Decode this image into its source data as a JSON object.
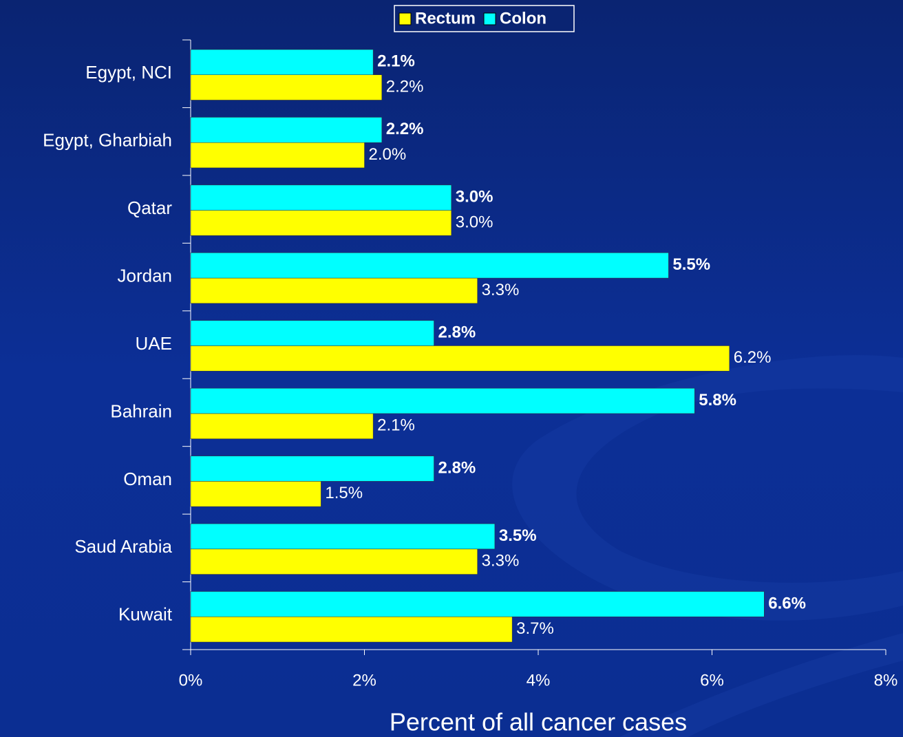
{
  "chart_data": {
    "type": "hbar",
    "categories": [
      "Egypt, NCI",
      "Egypt, Gharbiah",
      "Qatar",
      "Jordan",
      "UAE",
      "Bahrain",
      "Oman",
      "Saud Arabia",
      "Kuwait"
    ],
    "series": [
      {
        "name": "Rectum",
        "color": "#ffff00",
        "values": [
          2.2,
          2.0,
          3.0,
          3.3,
          6.2,
          2.1,
          1.5,
          3.3,
          3.7
        ],
        "value_labels": [
          "2.2%",
          "2.0%",
          "3.0%",
          "3.3%",
          "6.2%",
          "2.1%",
          "1.5%",
          "3.3%",
          "3.7%"
        ]
      },
      {
        "name": "Colon",
        "color": "#00ffff",
        "values": [
          2.1,
          2.2,
          3.0,
          5.5,
          2.8,
          5.8,
          2.8,
          3.5,
          6.6
        ],
        "value_labels": [
          "2.1%",
          "2.2%",
          "3.0%",
          "5.5%",
          "2.8%",
          "5.8%",
          "2.8%",
          "3.5%",
          "6.6%"
        ]
      }
    ],
    "xlim": [
      0,
      8
    ],
    "xticks": [
      {
        "value": 0,
        "label": "0%"
      },
      {
        "value": 2,
        "label": "2%"
      },
      {
        "value": 4,
        "label": "4%"
      },
      {
        "value": 6,
        "label": "6%"
      },
      {
        "value": 8,
        "label": "8%"
      }
    ],
    "xlabel": "Percent of all cancer cases",
    "legend": "top"
  }
}
